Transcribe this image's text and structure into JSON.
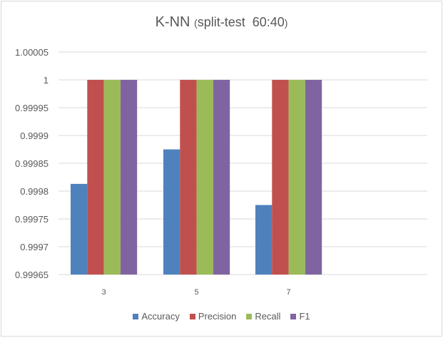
{
  "chart_data": {
    "type": "bar",
    "title_main": "K-NN ",
    "title_paren_open": "(",
    "title_sub": "split-test  60:40",
    "title_paren_close": ")",
    "xlabel": "",
    "ylabel": "",
    "categories": [
      "3",
      "5",
      "7"
    ],
    "ylim": [
      0.99965,
      1.00005
    ],
    "yticks": [
      "0.99965",
      "0.9997",
      "0.99975",
      "0.9998",
      "0.99985",
      "0.9999",
      "0.99995",
      "1",
      "1.00005"
    ],
    "grid": true,
    "legend_position": "bottom",
    "series": [
      {
        "name": "Accuracy",
        "color": "#4f81bd",
        "values": [
          0.999813,
          0.999875,
          0.999775
        ]
      },
      {
        "name": "Precision",
        "color": "#c0504d",
        "values": [
          1,
          1,
          1
        ]
      },
      {
        "name": "Recall",
        "color": "#9bbb59",
        "values": [
          1,
          1,
          1
        ]
      },
      {
        "name": "F1",
        "color": "#8064a2",
        "values": [
          1,
          1,
          1
        ]
      }
    ]
  }
}
